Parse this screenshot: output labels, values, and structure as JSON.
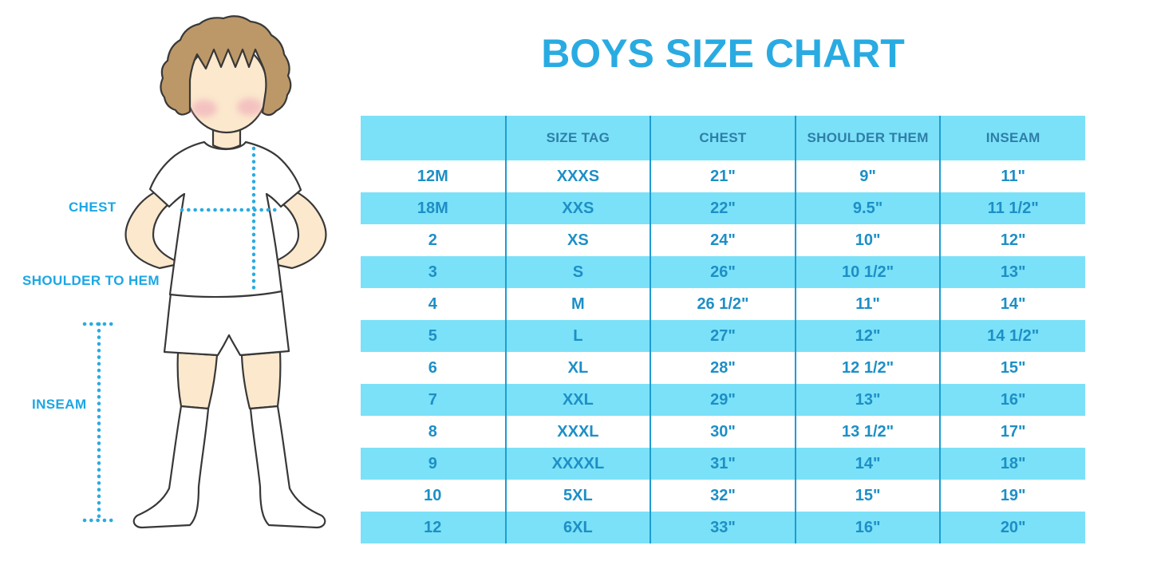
{
  "title": "BOYS SIZE CHART",
  "diagram": {
    "chest_label": "CHEST",
    "shoulder_label": "SHOULDER TO HEM",
    "inseam_label": "INSEAM"
  },
  "chart_data": {
    "type": "table",
    "title": "BOYS SIZE CHART",
    "columns": [
      "",
      "SIZE TAG",
      "CHEST",
      "SHOULDER THEM",
      "INSEAM"
    ],
    "rows": [
      [
        "12M",
        "XXXS",
        "21\"",
        "9\"",
        "11\""
      ],
      [
        "18M",
        "XXS",
        "22\"",
        "9.5\"",
        "11 1/2\""
      ],
      [
        "2",
        "XS",
        "24\"",
        "10\"",
        "12\""
      ],
      [
        "3",
        "S",
        "26\"",
        "10 1/2\"",
        "13\""
      ],
      [
        "4",
        "M",
        "26 1/2\"",
        "11\"",
        "14\""
      ],
      [
        "5",
        "L",
        "27\"",
        "12\"",
        "14 1/2\""
      ],
      [
        "6",
        "XL",
        "28\"",
        "12 1/2\"",
        "15\""
      ],
      [
        "7",
        "XXL",
        "29\"",
        "13\"",
        "16\""
      ],
      [
        "8",
        "XXXL",
        "30\"",
        "13 1/2\"",
        "17\""
      ],
      [
        "9",
        "XXXXL",
        "31\"",
        "14\"",
        "18\""
      ],
      [
        "10",
        "5XL",
        "32\"",
        "15\"",
        "19\""
      ],
      [
        "12",
        "6XL",
        "33\"",
        "16\"",
        "20\""
      ]
    ],
    "layout_hints": "5 equal columns; rows alternate white and light cyan starting white; no horizontal rules; vertical blue dividers between columns"
  },
  "colors": {
    "title_blue": "#29ABE2",
    "row_cyan": "#7BE1F8",
    "header_text_blue": "#2E7EA8",
    "cell_text_blue": "#1D8FC6",
    "divider_blue": "#1E9CD2",
    "label_blue": "#1BA7E5",
    "dotted_line_blue": "#29ABE2",
    "hair_brown": "#BC9868",
    "skin": "#FBE8CD",
    "cheek_pink": "#EFA9B8"
  }
}
